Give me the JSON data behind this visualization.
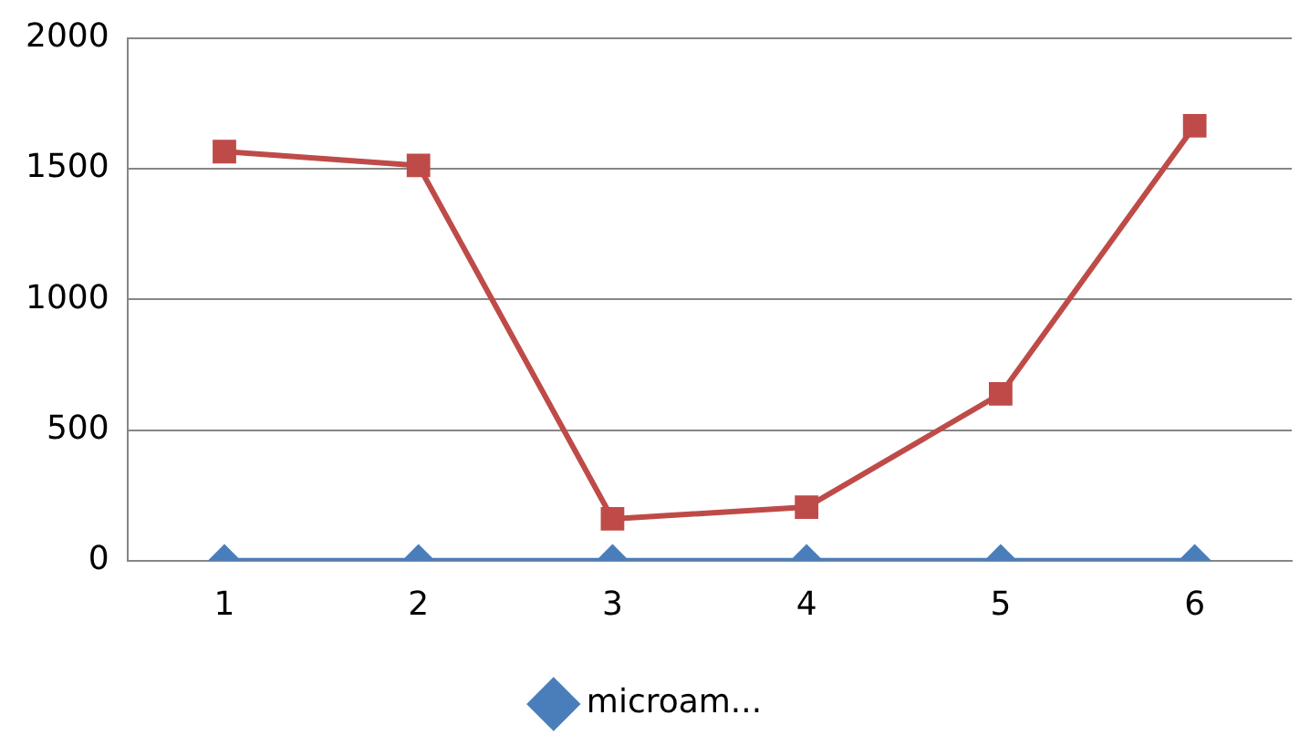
{
  "chart_data": {
    "type": "line",
    "categories": [
      "1",
      "2",
      "3",
      "4",
      "5",
      "6"
    ],
    "series": [
      {
        "name": "microam...",
        "color": "#4a7ebb",
        "marker": "diamond",
        "values": [
          0,
          0,
          0,
          0,
          0,
          0
        ]
      },
      {
        "color": "#be4b48",
        "marker": "square",
        "values": [
          1565,
          1512,
          160,
          205,
          638,
          1664
        ]
      }
    ],
    "ylim": [
      0,
      2000
    ],
    "yticks": [
      0,
      500,
      1000,
      1500,
      2000
    ],
    "grid": "y",
    "legend": "bottom"
  }
}
